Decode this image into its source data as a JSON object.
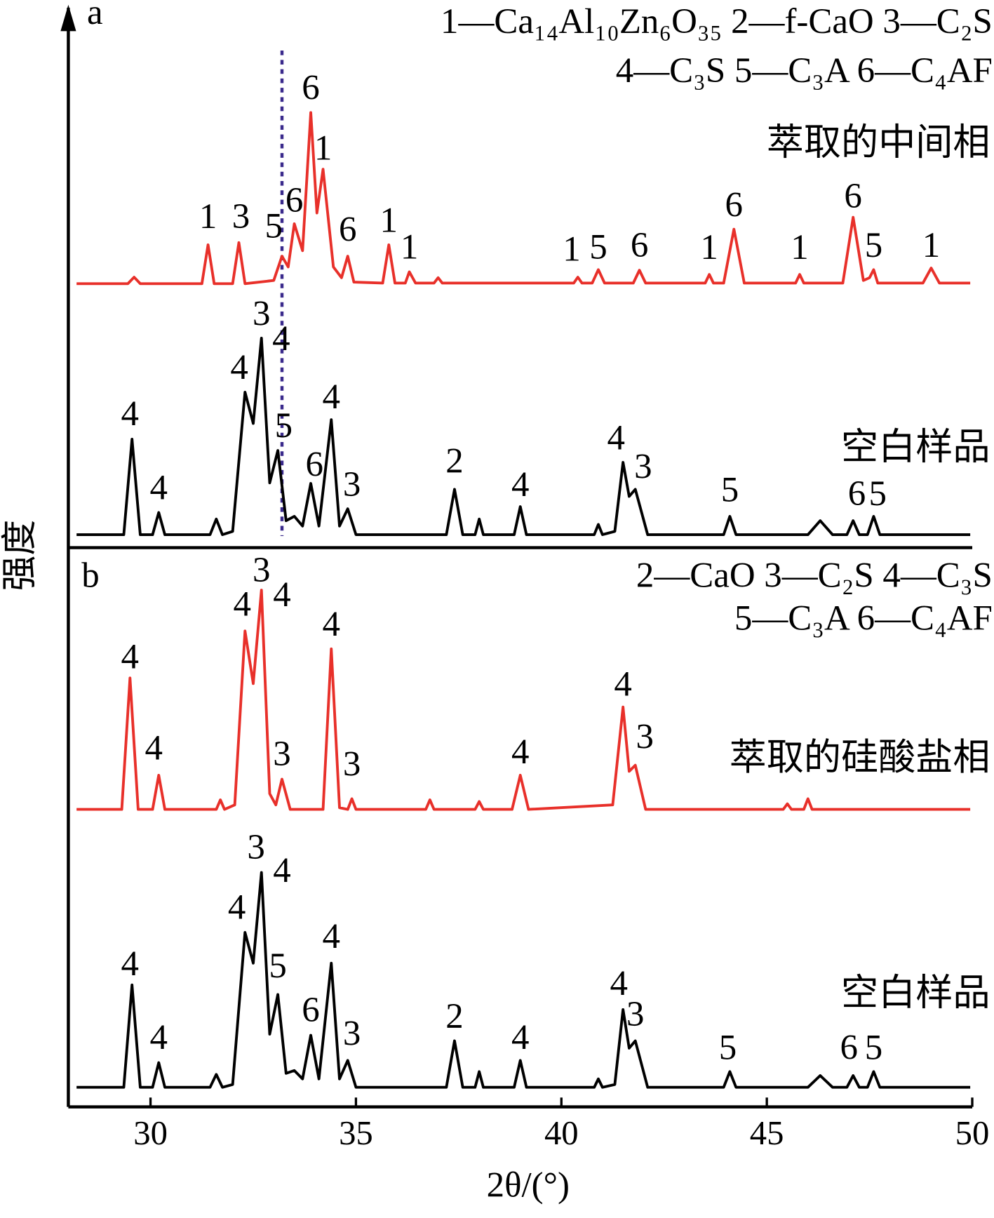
{
  "chart_data": [
    {
      "type": "line",
      "panel_label": "a",
      "ylabel": "强度",
      "xlim": [
        28,
        50
      ],
      "ylim": [
        0,
        100
      ],
      "reference_line_x": 33.2,
      "legend_lines": [
        "1—Ca₁₄Al₁₀Zn₆O₃₅  2—f-CaO   3—C₂S",
        "4—C₃S   5—C₃A   6—C₄AF"
      ],
      "series": [
        {
          "name": "萃取的中间相",
          "color": "#e8302a",
          "x": [
            28.2,
            29.45,
            29.6,
            29.75,
            31.25,
            31.4,
            31.55,
            32.0,
            32.15,
            32.3,
            33.0,
            33.2,
            33.35,
            33.5,
            33.7,
            33.9,
            34.05,
            34.2,
            34.45,
            34.65,
            34.8,
            34.95,
            35.65,
            35.8,
            35.95,
            36.2,
            36.3,
            36.45,
            36.9,
            37.0,
            37.1,
            40.3,
            40.4,
            40.5,
            40.75,
            40.9,
            41.05,
            41.75,
            41.9,
            42.05,
            43.5,
            43.6,
            43.7,
            43.95,
            44.2,
            44.45,
            45.7,
            45.8,
            45.9,
            46.85,
            47.1,
            47.35,
            47.5,
            47.6,
            47.7,
            48.8,
            49.0,
            49.2,
            49.95
          ],
          "values": [
            48.9,
            48.9,
            50.1,
            48.9,
            48.9,
            56.1,
            48.9,
            48.9,
            56.5,
            48.9,
            49.5,
            54.0,
            52,
            60.0,
            55,
            80.6,
            62,
            70.1,
            52,
            50,
            54.0,
            49.2,
            49,
            56.1,
            49,
            49,
            51.1,
            49,
            49,
            50.0,
            49,
            49,
            50.1,
            49,
            49,
            51.5,
            49,
            49,
            51.4,
            49,
            49,
            50.6,
            49,
            49,
            59.0,
            49,
            49,
            50.6,
            49,
            49,
            61.2,
            49.5,
            50,
            51.5,
            49,
            49,
            51.8,
            49,
            49
          ]
        },
        {
          "name": "空白样品",
          "color": "#000000",
          "x": [
            28.2,
            29.35,
            29.55,
            29.75,
            30.05,
            30.2,
            30.35,
            31.45,
            31.6,
            31.75,
            32.0,
            32.3,
            32.5,
            32.7,
            32.9,
            33.1,
            33.3,
            33.5,
            33.7,
            33.9,
            34.1,
            34.4,
            34.6,
            34.8,
            35.0,
            37.2,
            37.4,
            37.6,
            37.9,
            38.0,
            38.1,
            38.85,
            39.0,
            39.15,
            40.8,
            40.9,
            41.0,
            41.3,
            41.5,
            41.65,
            41.8,
            42.1,
            43.95,
            44.1,
            44.25,
            46.0,
            46.3,
            46.6,
            46.95,
            47.1,
            47.25,
            47.45,
            47.6,
            47.75,
            49.95
          ],
          "values": [
            2.4,
            2.4,
            20.1,
            2.4,
            2.4,
            6.5,
            2.4,
            2.4,
            5.3,
            2.4,
            3,
            28.8,
            23,
            38.8,
            12,
            18,
            5,
            5.8,
            4,
            11.9,
            4,
            23.7,
            4,
            7.2,
            2.4,
            2.4,
            10.8,
            2.4,
            2.4,
            5.3,
            2.4,
            2.4,
            7.6,
            2.4,
            2.4,
            4.3,
            2.4,
            3,
            15.8,
            9.5,
            10.8,
            2.4,
            2.4,
            5.8,
            2.4,
            2.4,
            5,
            2.4,
            2.4,
            5,
            2.4,
            2.4,
            5.8,
            2.4,
            2.4
          ]
        }
      ],
      "annotations": [
        {
          "text": "1",
          "x": 31.4,
          "y": 60.7
        },
        {
          "text": "3",
          "x": 32.2,
          "y": 60.7
        },
        {
          "text": "5",
          "x": 33.0,
          "y": 59.0
        },
        {
          "text": "6",
          "x": 33.5,
          "y": 63.7
        },
        {
          "text": "6",
          "x": 33.9,
          "y": 84.6
        },
        {
          "text": "1",
          "x": 34.2,
          "y": 73.4
        },
        {
          "text": "6",
          "x": 34.8,
          "y": 58.3
        },
        {
          "text": "1",
          "x": 35.8,
          "y": 60.0
        },
        {
          "text": "1",
          "x": 36.3,
          "y": 55.1
        },
        {
          "text": "1",
          "x": 40.25,
          "y": 54.7
        },
        {
          "text": "5",
          "x": 40.9,
          "y": 55.1
        },
        {
          "text": "6",
          "x": 41.9,
          "y": 55.4
        },
        {
          "text": "1",
          "x": 43.6,
          "y": 55.0
        },
        {
          "text": "6",
          "x": 44.2,
          "y": 62.9
        },
        {
          "text": "1",
          "x": 45.8,
          "y": 55.0
        },
        {
          "text": "6",
          "x": 47.1,
          "y": 64.5
        },
        {
          "text": "5",
          "x": 47.6,
          "y": 55.4
        },
        {
          "text": "1",
          "x": 49.0,
          "y": 55.4
        },
        {
          "text": "4",
          "x": 29.5,
          "y": 24.2
        },
        {
          "text": "4",
          "x": 30.2,
          "y": 10.5
        },
        {
          "text": "4",
          "x": 32.16,
          "y": 32.8
        },
        {
          "text": "3",
          "x": 32.7,
          "y": 42.7
        },
        {
          "text": "4",
          "x": 33.18,
          "y": 38.1
        },
        {
          "text": "5",
          "x": 33.24,
          "y": 22.0
        },
        {
          "text": "6",
          "x": 33.99,
          "y": 14.8
        },
        {
          "text": "4",
          "x": 34.4,
          "y": 27.3
        },
        {
          "text": "3",
          "x": 34.9,
          "y": 11.1
        },
        {
          "text": "2",
          "x": 37.4,
          "y": 15.4
        },
        {
          "text": "4",
          "x": 39.0,
          "y": 11.1
        },
        {
          "text": "4",
          "x": 41.33,
          "y": 19.7
        },
        {
          "text": "3",
          "x": 41.99,
          "y": 14.4
        },
        {
          "text": "5",
          "x": 44.1,
          "y": 10.1
        },
        {
          "text": "6",
          "x": 47.19,
          "y": 9.4
        },
        {
          "text": "5",
          "x": 47.7,
          "y": 9.4
        }
      ]
    },
    {
      "type": "line",
      "panel_label": "b",
      "xlabel": "2θ/(°)",
      "xlim": [
        28,
        50
      ],
      "ylim": [
        0,
        100
      ],
      "xticks": [
        30,
        35,
        40,
        45,
        50
      ],
      "legend_lines": [
        "2—CaO   3—C₂S  4—C₃S",
        "5—C₃A   6—C₄AF"
      ],
      "series": [
        {
          "name": "萃取的硅酸盐相",
          "color": "#e8302a",
          "x": [
            28.2,
            29.3,
            29.5,
            29.7,
            30.05,
            30.2,
            30.35,
            31.6,
            31.7,
            31.8,
            32.05,
            32.3,
            32.5,
            32.7,
            32.9,
            33.05,
            33.2,
            33.4,
            34.2,
            34.4,
            34.6,
            34.8,
            34.9,
            35.0,
            36.7,
            36.8,
            36.9,
            37.9,
            38.0,
            38.1,
            38.8,
            39.0,
            39.2,
            41.25,
            41.5,
            41.65,
            41.8,
            42.05,
            45.4,
            45.5,
            45.6,
            45.9,
            46.0,
            46.1,
            49.95
          ],
          "values": [
            53.2,
            53.2,
            76.7,
            53.2,
            53.2,
            59.3,
            53.2,
            53.2,
            54.9,
            53.2,
            54,
            85.1,
            75.7,
            92.4,
            56,
            54,
            58.6,
            53.2,
            53.2,
            81.9,
            53.5,
            53.2,
            55.1,
            53.2,
            53.2,
            54.9,
            53.2,
            53.2,
            54.6,
            53.2,
            53.2,
            59.3,
            53.2,
            54,
            71.5,
            60,
            61.1,
            53.2,
            53.2,
            54.2,
            53.2,
            53.2,
            55.1,
            53.2,
            53.2
          ]
        },
        {
          "name": "空白样品",
          "color": "#000000",
          "x": [
            28.2,
            29.35,
            29.55,
            29.75,
            30.05,
            30.2,
            30.35,
            31.45,
            31.6,
            31.75,
            32.0,
            32.3,
            32.5,
            32.7,
            32.9,
            33.1,
            33.3,
            33.5,
            33.7,
            33.9,
            34.1,
            34.4,
            34.6,
            34.8,
            35.0,
            37.2,
            37.4,
            37.6,
            37.9,
            38.0,
            38.1,
            38.85,
            39.0,
            39.15,
            40.8,
            40.9,
            41.0,
            41.3,
            41.5,
            41.65,
            41.8,
            42.1,
            43.95,
            44.1,
            44.25,
            46.0,
            46.3,
            46.6,
            46.95,
            47.1,
            47.25,
            47.45,
            47.6,
            47.75,
            49.95
          ],
          "values": [
            3.5,
            3.5,
            21.8,
            3.5,
            3.5,
            7.9,
            3.5,
            3.5,
            5.8,
            3.5,
            4,
            31.2,
            25.7,
            41.9,
            13,
            20.1,
            6,
            6.5,
            5,
            12.8,
            5,
            25.7,
            5,
            8.3,
            3.5,
            3.5,
            11.8,
            3.5,
            3.5,
            6.3,
            3.5,
            3.5,
            8.3,
            3.5,
            3.5,
            5,
            3.5,
            4,
            17.4,
            10.5,
            11.8,
            3.5,
            3.5,
            6.3,
            3.5,
            3.5,
            5.6,
            3.5,
            3.5,
            5.6,
            3.5,
            3.5,
            6.3,
            3.5,
            3.5
          ]
        }
      ],
      "annotations": [
        {
          "text": "4",
          "x": 29.5,
          "y": 79.9
        },
        {
          "text": "4",
          "x": 30.08,
          "y": 63.6
        },
        {
          "text": "4",
          "x": 32.23,
          "y": 89.3
        },
        {
          "text": "3",
          "x": 32.7,
          "y": 95.4
        },
        {
          "text": "4",
          "x": 33.2,
          "y": 91.0
        },
        {
          "text": "3",
          "x": 33.2,
          "y": 62.5
        },
        {
          "text": "4",
          "x": 34.4,
          "y": 85.7
        },
        {
          "text": "3",
          "x": 34.9,
          "y": 60.7
        },
        {
          "text": "4",
          "x": 39.0,
          "y": 62.9
        },
        {
          "text": "4",
          "x": 41.5,
          "y": 75.0
        },
        {
          "text": "3",
          "x": 42.03,
          "y": 65.6
        },
        {
          "text": "4",
          "x": 29.5,
          "y": 25.0
        },
        {
          "text": "4",
          "x": 30.2,
          "y": 11.8
        },
        {
          "text": "4",
          "x": 32.1,
          "y": 35.1
        },
        {
          "text": "3",
          "x": 32.57,
          "y": 45.8
        },
        {
          "text": "4",
          "x": 33.2,
          "y": 41.7
        },
        {
          "text": "5",
          "x": 33.1,
          "y": 24.6
        },
        {
          "text": "6",
          "x": 33.9,
          "y": 16.7
        },
        {
          "text": "4",
          "x": 34.4,
          "y": 29.9
        },
        {
          "text": "3",
          "x": 34.9,
          "y": 12.5
        },
        {
          "text": "2",
          "x": 37.4,
          "y": 15.6
        },
        {
          "text": "4",
          "x": 39.0,
          "y": 11.8
        },
        {
          "text": "4",
          "x": 41.4,
          "y": 21.5
        },
        {
          "text": "3",
          "x": 41.8,
          "y": 16.0
        },
        {
          "text": "5",
          "x": 44.05,
          "y": 10.0
        },
        {
          "text": "6",
          "x": 47.0,
          "y": 10.0
        },
        {
          "text": "5",
          "x": 47.6,
          "y": 10.0
        }
      ]
    }
  ]
}
